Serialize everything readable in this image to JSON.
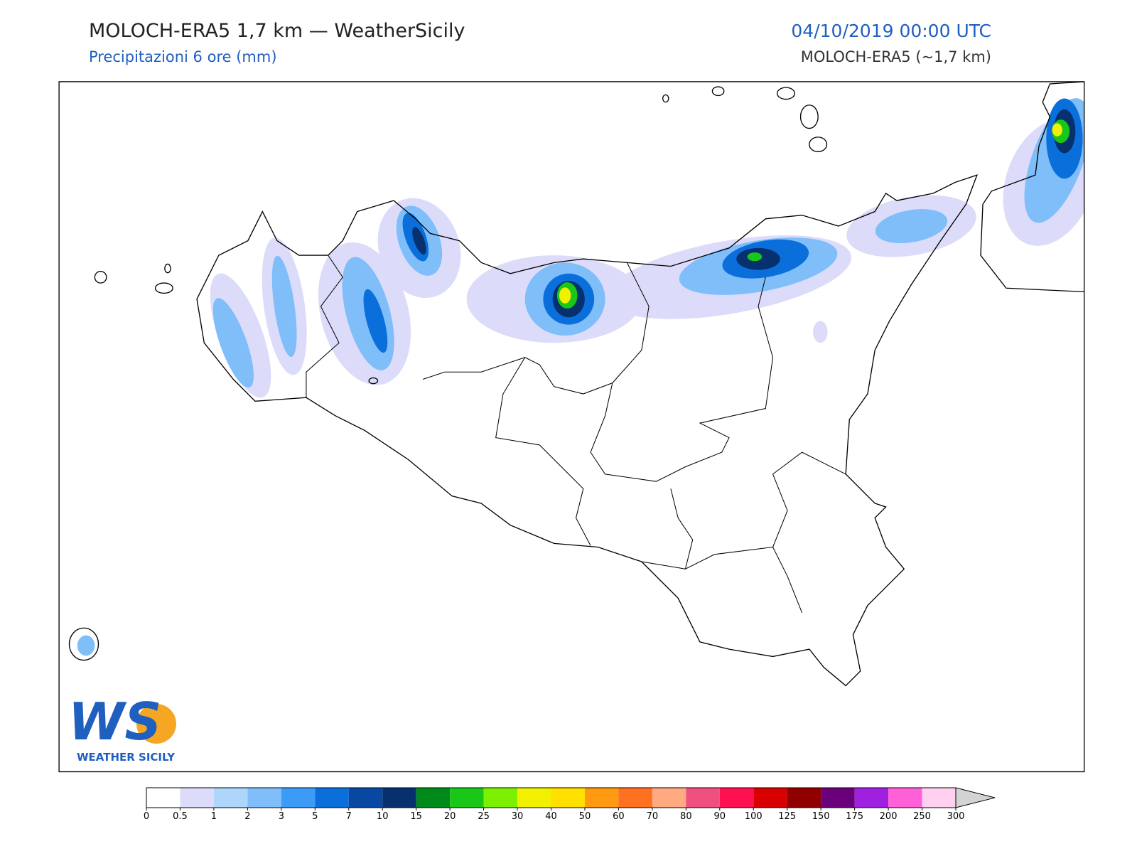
{
  "header": {
    "title": "MOLOCH-ERA5 1,7 km — WeatherSicily",
    "subtitle": "Precipitazioni 6 ore (mm)",
    "datetime": "04/10/2019 00:00 UTC",
    "model": "MOLOCH-ERA5 (~1,7 km)"
  },
  "logo": {
    "mark": "WS",
    "name": "WEATHER SICILY"
  },
  "colorbar": {
    "ticks": [
      0,
      0.5,
      1,
      2,
      3,
      5,
      7,
      10,
      15,
      20,
      25,
      30,
      40,
      50,
      60,
      70,
      80,
      90,
      100,
      125,
      150,
      175,
      200,
      250,
      300
    ],
    "colors": [
      "#ffffff",
      "#dcdcfa",
      "#aed6fb",
      "#7fbef9",
      "#3d9bf8",
      "#0b6fdb",
      "#0848a2",
      "#07306e",
      "#008a19",
      "#18c718",
      "#7cf000",
      "#f0f000",
      "#ffe000",
      "#ff9a10",
      "#ff7020",
      "#ffaa80",
      "#f05080",
      "#ff1050",
      "#d80000",
      "#900000",
      "#6a007a",
      "#a020e0",
      "#ff60d8",
      "#ffd0f0"
    ],
    "extend_color": "#d3d3d3"
  }
}
